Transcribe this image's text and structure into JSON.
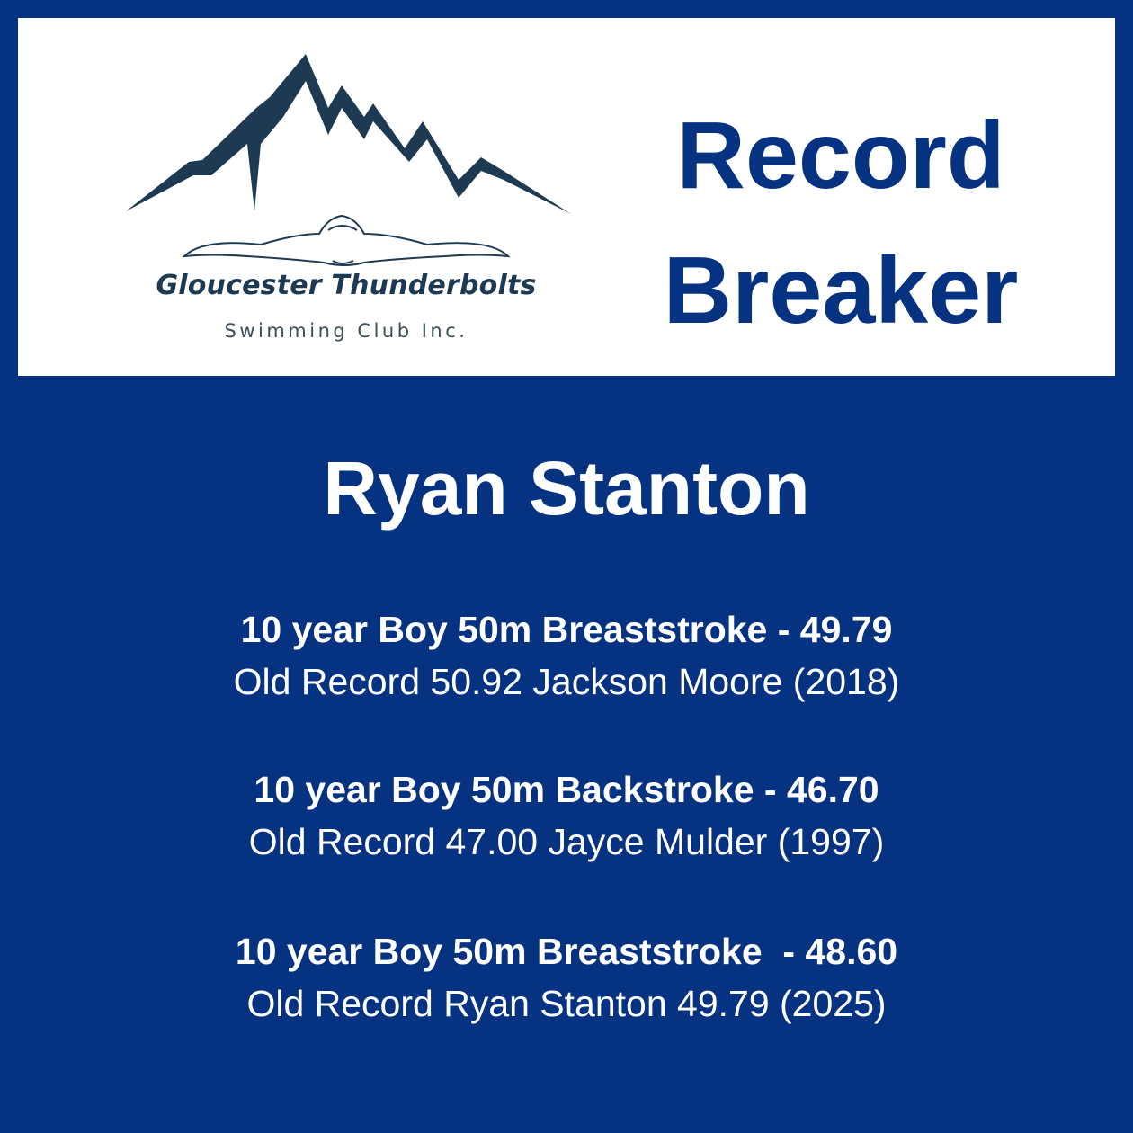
{
  "logo": {
    "club_name": "Gloucester Thunderbolts",
    "club_sub": "Swimming Club Inc.",
    "icon": "mountain-swimmer-logo"
  },
  "title": {
    "line1": "Record",
    "line2": "Breaker"
  },
  "athlete_name": "Ryan Stanton",
  "records": [
    {
      "event": "10 year Boy 50m Breaststroke - 49.79",
      "old_record": "Old Record 50.92 Jackson Moore (2018)"
    },
    {
      "event": "10 year Boy 50m Backstroke - 46.70",
      "old_record": "Old Record 47.00 Jayce Mulder (1997)"
    },
    {
      "event": "10 year Boy 50m Breaststroke  - 48.60",
      "old_record": "Old Record Ryan Stanton 49.79 (2025)"
    }
  ],
  "colors": {
    "background": "#063381",
    "panel": "#ffffff",
    "mountain": "#1d3a52"
  }
}
